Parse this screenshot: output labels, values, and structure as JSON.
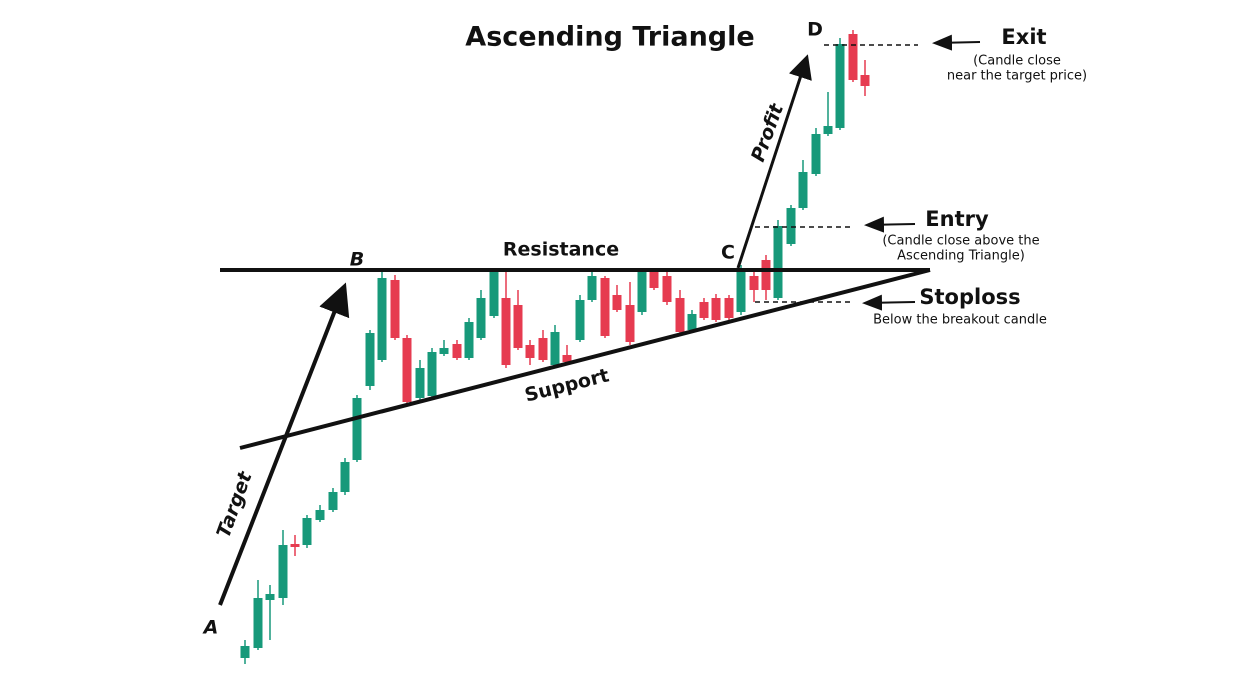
{
  "title": "Ascending Triangle",
  "points": {
    "a": "A",
    "b": "B",
    "c": "C",
    "d": "D"
  },
  "lines": {
    "target": "Target",
    "profit": "Profit",
    "resistance": "Resistance",
    "support": "Support"
  },
  "notes": {
    "exit": {
      "heading": "Exit",
      "detail": [
        "(Candle close",
        "near the target price)"
      ]
    },
    "entry": {
      "heading": "Entry",
      "detail": [
        "(Candle close above the",
        "Ascending Triangle)"
      ]
    },
    "stoploss": {
      "heading": "Stoploss",
      "detail": [
        "Below the breakout candle"
      ]
    }
  }
}
